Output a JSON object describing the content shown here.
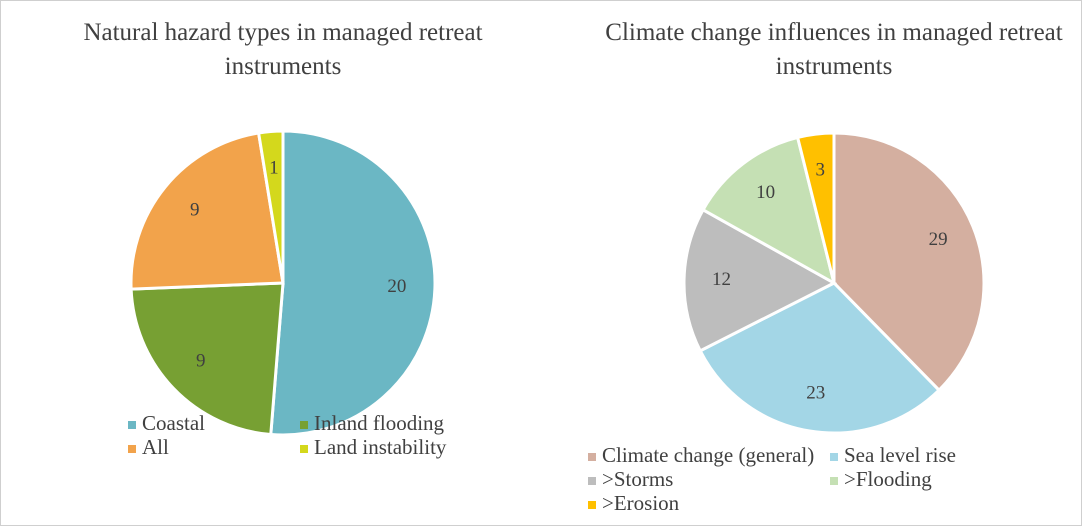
{
  "chart_data": [
    {
      "type": "pie",
      "title": "Natural hazard types in managed retreat instruments",
      "categories": [
        "Coastal",
        "Inland flooding",
        "All",
        "Land instability"
      ],
      "values": [
        20,
        9,
        9,
        1
      ],
      "colors": [
        "#6bb7c4",
        "#77a033",
        "#f2a34b",
        "#d4d81c"
      ]
    },
    {
      "type": "pie",
      "title": "Climate change influences in managed retreat instruments",
      "categories": [
        "Climate change (general)",
        "Sea level rise",
        ">Storms",
        ">Flooding",
        ">Erosion"
      ],
      "values": [
        29,
        23,
        12,
        10,
        3
      ],
      "colors": [
        "#d4afa0",
        "#a3d6e6",
        "#bdbdbd",
        "#c5e0b4",
        "#ffc000"
      ]
    }
  ]
}
